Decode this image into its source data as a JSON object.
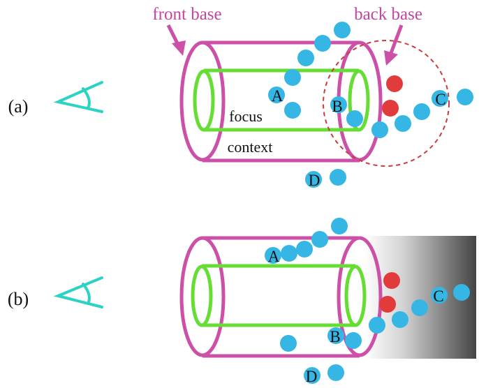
{
  "labels": {
    "front_base": "front base",
    "back_base": "back base",
    "focus": "focus",
    "context": "context",
    "panel_a": "(a)",
    "panel_b": "(b)"
  },
  "points": {
    "A": "A",
    "B": "B",
    "C": "C",
    "D": "D"
  },
  "colors": {
    "outer_cylinder": "#cc4fa8",
    "inner_cylinder": "#66dd33",
    "eye": "#2bd3c4",
    "blue_point": "#35b6e4",
    "red_point": "#e23b3b",
    "dashed_circle": "#cc3b3b",
    "label_pink": "#c4459e"
  },
  "icons": [
    "eye-icon",
    "arrow-down-icon"
  ]
}
